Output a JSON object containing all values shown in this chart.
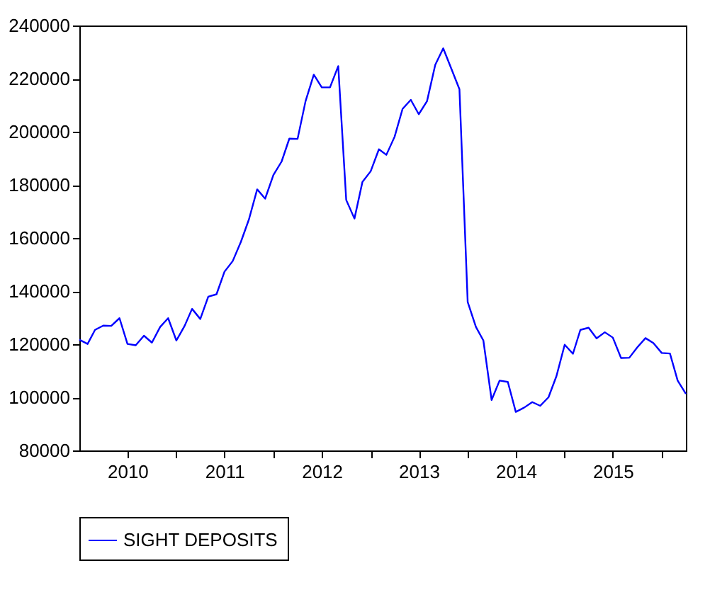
{
  "chart_data": {
    "type": "line",
    "x": [
      "2010-01",
      "2010-02",
      "2010-03",
      "2010-04",
      "2010-05",
      "2010-06",
      "2010-07",
      "2010-08",
      "2010-09",
      "2010-10",
      "2010-11",
      "2010-12",
      "2011-01",
      "2011-02",
      "2011-03",
      "2011-04",
      "2011-05",
      "2011-06",
      "2011-07",
      "2011-08",
      "2011-09",
      "2011-10",
      "2011-11",
      "2011-12",
      "2012-01",
      "2012-02",
      "2012-03",
      "2012-04",
      "2012-05",
      "2012-06",
      "2012-07",
      "2012-08",
      "2012-09",
      "2012-10",
      "2012-11",
      "2012-12",
      "2013-01",
      "2013-02",
      "2013-03",
      "2013-04",
      "2013-05",
      "2013-06",
      "2013-07",
      "2013-08",
      "2013-09",
      "2013-10",
      "2013-11",
      "2013-12",
      "2014-01",
      "2014-02",
      "2014-03",
      "2014-04",
      "2014-05",
      "2014-06",
      "2014-07",
      "2014-08",
      "2014-09",
      "2014-10",
      "2014-11",
      "2014-12",
      "2015-01",
      "2015-02",
      "2015-03",
      "2015-04",
      "2015-05",
      "2015-06",
      "2015-07",
      "2015-08",
      "2015-09",
      "2015-10",
      "2015-11",
      "2015-12",
      "2016-01",
      "2016-02",
      "2016-03",
      "2016-04"
    ],
    "series": [
      {
        "name": "SIGHT DEPOSITS",
        "color": "#0000ff",
        "values": [
          121700,
          120100,
          125400,
          127000,
          126900,
          129800,
          120100,
          119600,
          123200,
          120600,
          126500,
          129800,
          121400,
          126900,
          133300,
          129500,
          137900,
          138800,
          147300,
          151300,
          158600,
          167000,
          178300,
          174800,
          183700,
          188800,
          197400,
          197300,
          211500,
          221500,
          216700,
          216700,
          224700,
          174300,
          167300,
          181100,
          185100,
          193400,
          191300,
          198100,
          208600,
          212000,
          206600,
          211500,
          225200,
          231400,
          223600,
          216000,
          135900,
          126500,
          121400,
          99000,
          106300,
          105800,
          94500,
          96100,
          98200,
          96800,
          100000,
          108000,
          119800,
          116400,
          125400,
          126200,
          122200,
          124500,
          122500,
          114800,
          114900,
          118800,
          122300,
          120400,
          116700,
          116500,
          106300,
          101300
        ]
      }
    ],
    "xlim": [
      "2010-01",
      "2016-04"
    ],
    "xticks": [
      {
        "value": "2010-07",
        "label": "2010"
      },
      {
        "value": "2011-01",
        "label": null
      },
      {
        "value": "2011-07",
        "label": "2011"
      },
      {
        "value": "2012-01",
        "label": null
      },
      {
        "value": "2012-07",
        "label": "2012"
      },
      {
        "value": "2013-01",
        "label": null
      },
      {
        "value": "2013-07",
        "label": "2013"
      },
      {
        "value": "2014-01",
        "label": null
      },
      {
        "value": "2014-07",
        "label": "2014"
      },
      {
        "value": "2015-01",
        "label": null
      },
      {
        "value": "2015-07",
        "label": "2015"
      },
      {
        "value": "2016-01",
        "label": null
      }
    ],
    "ylim": [
      80000,
      240000
    ],
    "yticks": [
      80000,
      100000,
      120000,
      140000,
      160000,
      180000,
      200000,
      220000,
      240000
    ],
    "grid": false,
    "legend": "bottom",
    "line_style": "solid",
    "marker": "none"
  }
}
